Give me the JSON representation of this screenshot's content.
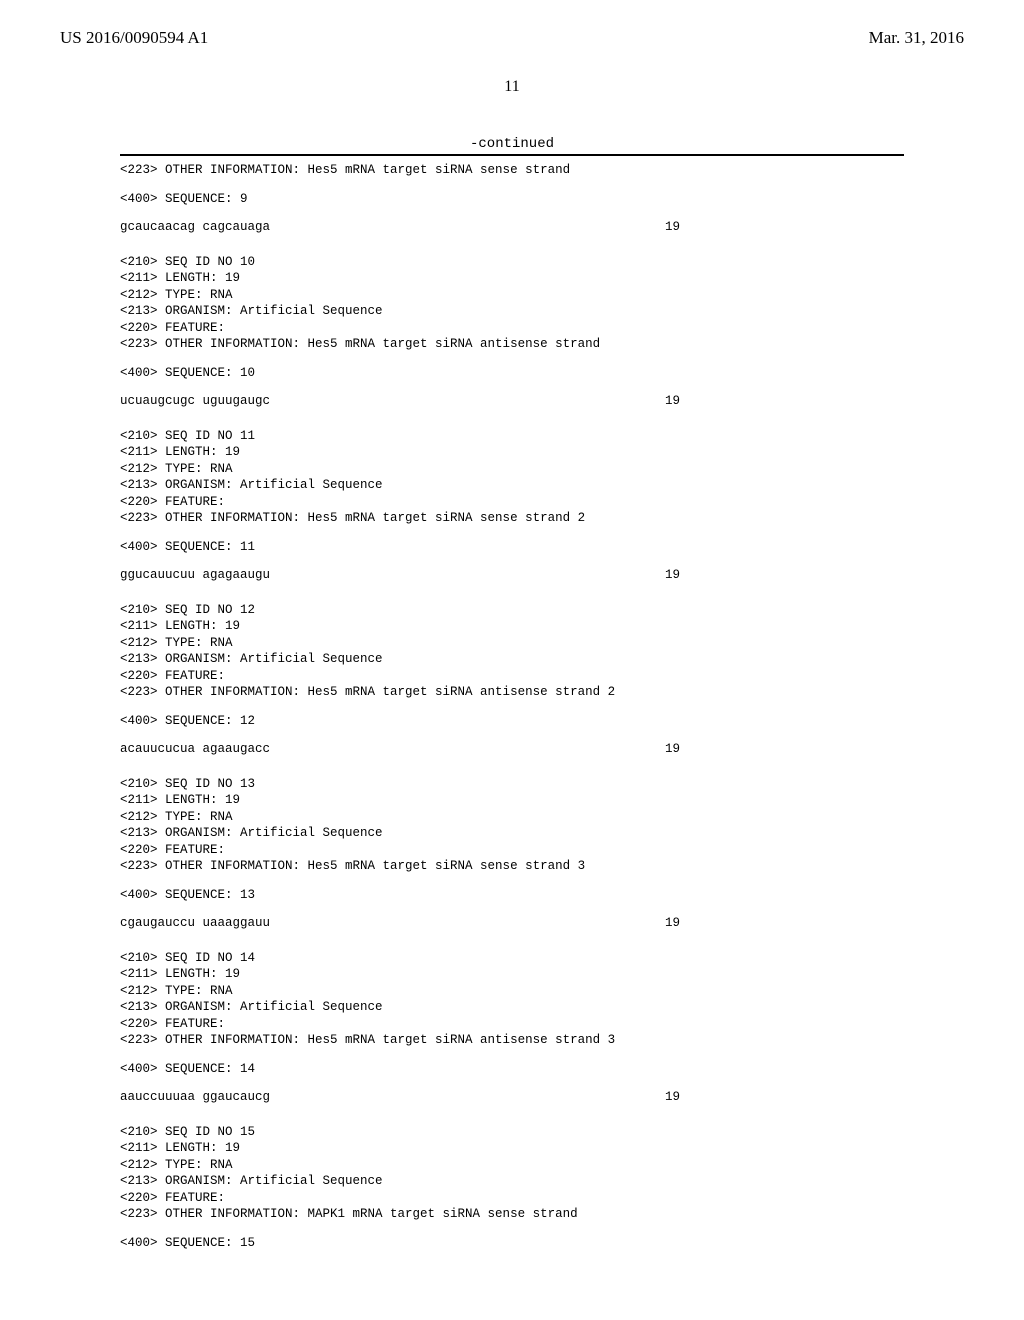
{
  "header": {
    "pub_number": "US 2016/0090594 A1",
    "pub_date": "Mar. 31, 2016"
  },
  "page_number": "11",
  "continued_label": "-continued",
  "entries": [
    {
      "pre_lines": [
        "<223> OTHER INFORMATION: Hes5 mRNA target siRNA sense strand"
      ],
      "seq_label": "<400> SEQUENCE: 9",
      "sequence": "gcaucaacag cagcauaga",
      "length": "19"
    },
    {
      "pre_lines": [
        "<210> SEQ ID NO 10",
        "<211> LENGTH: 19",
        "<212> TYPE: RNA",
        "<213> ORGANISM: Artificial Sequence",
        "<220> FEATURE:",
        "<223> OTHER INFORMATION: Hes5 mRNA target siRNA antisense strand"
      ],
      "seq_label": "<400> SEQUENCE: 10",
      "sequence": "ucuaugcugc uguugaugc",
      "length": "19"
    },
    {
      "pre_lines": [
        "<210> SEQ ID NO 11",
        "<211> LENGTH: 19",
        "<212> TYPE: RNA",
        "<213> ORGANISM: Artificial Sequence",
        "<220> FEATURE:",
        "<223> OTHER INFORMATION: Hes5 mRNA target siRNA sense strand 2"
      ],
      "seq_label": "<400> SEQUENCE: 11",
      "sequence": "ggucauucuu agagaaugu",
      "length": "19"
    },
    {
      "pre_lines": [
        "<210> SEQ ID NO 12",
        "<211> LENGTH: 19",
        "<212> TYPE: RNA",
        "<213> ORGANISM: Artificial Sequence",
        "<220> FEATURE:",
        "<223> OTHER INFORMATION: Hes5 mRNA target siRNA antisense strand 2"
      ],
      "seq_label": "<400> SEQUENCE: 12",
      "sequence": "acauucucua agaaugacc",
      "length": "19"
    },
    {
      "pre_lines": [
        "<210> SEQ ID NO 13",
        "<211> LENGTH: 19",
        "<212> TYPE: RNA",
        "<213> ORGANISM: Artificial Sequence",
        "<220> FEATURE:",
        "<223> OTHER INFORMATION: Hes5 mRNA target siRNA sense strand 3"
      ],
      "seq_label": "<400> SEQUENCE: 13",
      "sequence": "cgaugauccu uaaaggauu",
      "length": "19"
    },
    {
      "pre_lines": [
        "<210> SEQ ID NO 14",
        "<211> LENGTH: 19",
        "<212> TYPE: RNA",
        "<213> ORGANISM: Artificial Sequence",
        "<220> FEATURE:",
        "<223> OTHER INFORMATION: Hes5 mRNA target siRNA antisense strand 3"
      ],
      "seq_label": "<400> SEQUENCE: 14",
      "sequence": "aauccuuuaa ggaucaucg",
      "length": "19"
    },
    {
      "pre_lines": [
        "<210> SEQ ID NO 15",
        "<211> LENGTH: 19",
        "<212> TYPE: RNA",
        "<213> ORGANISM: Artificial Sequence",
        "<220> FEATURE:",
        "<223> OTHER INFORMATION: MAPK1 mRNA target siRNA sense strand"
      ],
      "seq_label": "<400> SEQUENCE: 15",
      "sequence": "",
      "length": ""
    }
  ]
}
